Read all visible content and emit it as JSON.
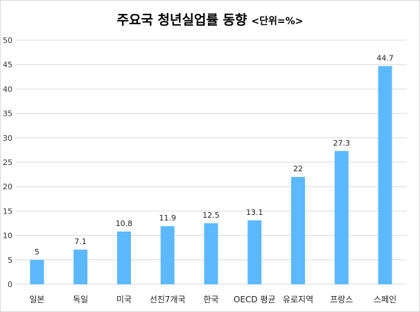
{
  "chart_data": {
    "type": "bar",
    "title": "주요국 청년실업률 동향",
    "unit_label": "<단위=%>",
    "categories": [
      "일본",
      "독일",
      "미국",
      "선진7개국",
      "한국",
      "OECD 평균",
      "유로지역",
      "프랑스",
      "스페인"
    ],
    "values": [
      5,
      7.1,
      10.8,
      11.9,
      12.5,
      13.1,
      22,
      27.3,
      44.7
    ],
    "value_labels": [
      "5",
      "7.1",
      "10.8",
      "11.9",
      "12.5",
      "13.1",
      "22",
      "27.3",
      "44.7"
    ],
    "ylim": [
      0,
      50
    ],
    "yticks": [
      0,
      5,
      10,
      15,
      20,
      25,
      30,
      35,
      40,
      45,
      50
    ],
    "xlabel": "",
    "ylabel": "",
    "grid": true,
    "bar_color": "#5cb8ff",
    "grid_color": "#d9d9d9"
  }
}
